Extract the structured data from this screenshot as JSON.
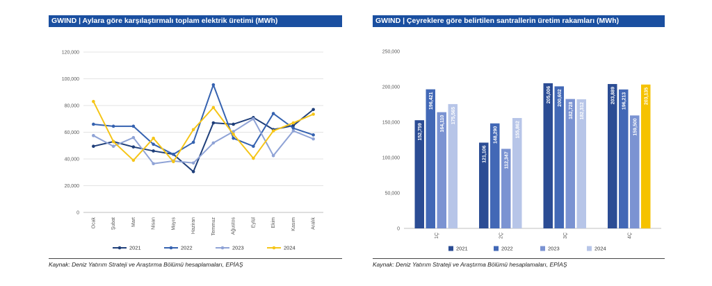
{
  "chart_data": [
    {
      "type": "line",
      "title": "GWIND | Aylara göre karşılaştırmalı toplam elektrik üretimi (MWh)",
      "categories": [
        "Ocak",
        "Şubat",
        "Mart",
        "Nisan",
        "Mayıs",
        "Haziran",
        "Temmuz",
        "Ağustos",
        "Eylül",
        "Ekim",
        "Kasım",
        "Aralık"
      ],
      "yticks": [
        "0",
        "20,000",
        "40,000",
        "60,000",
        "80,000",
        "100,000",
        "120,000"
      ],
      "ylim": [
        0,
        120000
      ],
      "grid": true,
      "legend_position": "bottom",
      "series": [
        {
          "name": "2021",
          "color": "#1f3f7a",
          "values": [
            49500,
            53000,
            49000,
            46000,
            43500,
            30500,
            67000,
            66000,
            71000,
            62000,
            65000,
            77000
          ]
        },
        {
          "name": "2022",
          "color": "#3562b0",
          "values": [
            66000,
            64500,
            64500,
            51000,
            43500,
            52500,
            95500,
            55500,
            49500,
            74000,
            63000,
            58000
          ]
        },
        {
          "name": "2023",
          "color": "#8fa3d6",
          "values": [
            57500,
            49500,
            56000,
            36500,
            38500,
            37000,
            52000,
            60500,
            70000,
            42500,
            61000,
            55000
          ]
        },
        {
          "name": "2024",
          "color": "#f5c518",
          "values": [
            83000,
            53000,
            39000,
            55500,
            38000,
            62000,
            78500,
            58500,
            40500,
            61000,
            67000,
            73500
          ]
        }
      ],
      "source": "Kaynak: Deniz Yatırım Strateji ve Araştırma Bölümü hesaplamaları, EPİAŞ"
    },
    {
      "type": "bar",
      "title": "GWIND | Çeyreklere göre belirtilen santrallerin üretim rakamları (MWh)",
      "categories": [
        "1Ç",
        "2Ç",
        "3Ç",
        "4Ç"
      ],
      "yticks": [
        "0",
        "50,000",
        "100,000",
        "150,000",
        "200,000",
        "250,000"
      ],
      "ylim": [
        0,
        250000
      ],
      "legend_position": "bottom",
      "series": [
        {
          "name": "2021",
          "color": "#2b4c94",
          "values": [
            152759,
            121106,
            205006,
            203889
          ],
          "labels": [
            "152,759",
            "121,106",
            "205,006",
            "203,889"
          ]
        },
        {
          "name": "2022",
          "color": "#4268b6",
          "values": [
            196421,
            148290,
            200602,
            196213
          ],
          "labels": [
            "196,421",
            "148,290",
            "200,602",
            "196,213"
          ]
        },
        {
          "name": "2023",
          "color": "#7b93d2",
          "values": [
            164110,
            112347,
            182728,
            159500
          ],
          "labels": [
            "164,110",
            "112,347",
            "182,728",
            "159,500"
          ]
        },
        {
          "name": "2024",
          "color": "#b7c5e8",
          "values": [
            175565,
            155862,
            182312,
            203135
          ],
          "labels": [
            "175,565",
            "155,862",
            "182,312",
            "203,135"
          ]
        }
      ],
      "highlight": {
        "series_index": 3,
        "category_index": 3,
        "color": "#f5c200"
      },
      "source": "Kaynak: Deniz Yatırım Strateji ve Araştırma Bölümü hesaplamaları, EPİAŞ"
    }
  ]
}
